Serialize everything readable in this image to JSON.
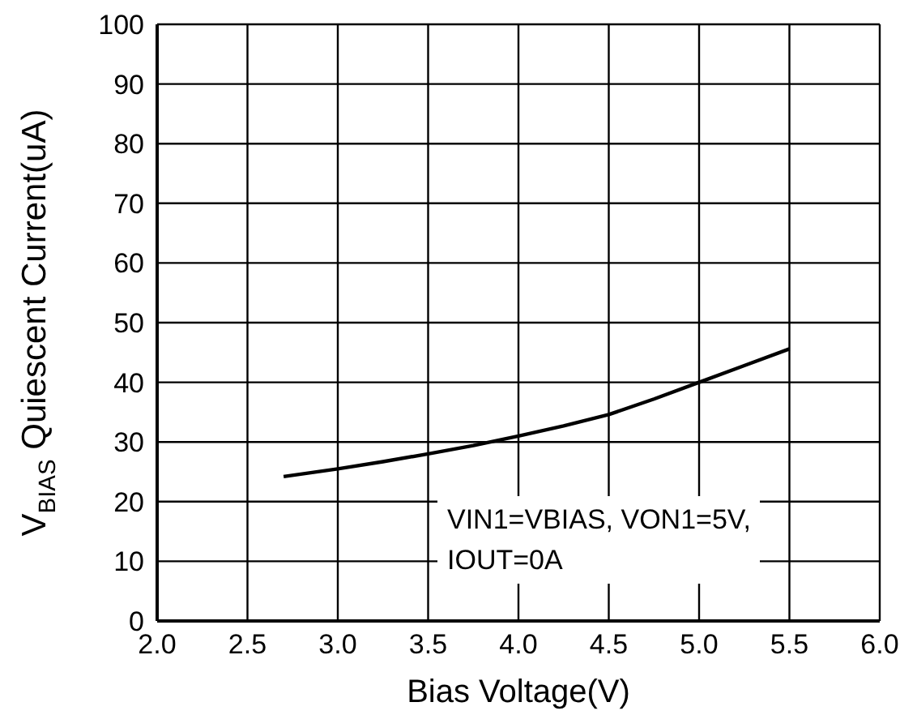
{
  "chart_data": {
    "type": "line",
    "xlabel": "Bias Voltage(V)",
    "ylabel": "V$_{BIAS}$ Quiescent Current(uA)",
    "x": [
      2.7,
      3.0,
      3.25,
      3.5,
      3.75,
      4.0,
      4.25,
      4.5,
      4.75,
      5.0,
      5.25,
      5.5
    ],
    "series": [
      {
        "color": "#000000",
        "values": [
          24.2,
          25.5,
          26.7,
          28.0,
          29.4,
          31.0,
          32.7,
          34.6,
          37.2,
          40.0,
          42.8,
          45.6
        ]
      }
    ],
    "xlim": [
      2.0,
      6.0
    ],
    "xticks": [
      {
        "value": 2.0,
        "label": "2.0"
      },
      {
        "value": 2.5,
        "label": "2.5"
      },
      {
        "value": 3.0,
        "label": "3.0"
      },
      {
        "value": 3.5,
        "label": "3.5"
      },
      {
        "value": 4.0,
        "label": "4.0"
      },
      {
        "value": 4.5,
        "label": "4.5"
      },
      {
        "value": 5.0,
        "label": "5.0"
      },
      {
        "value": 5.5,
        "label": "5.5"
      },
      {
        "value": 6.0,
        "label": "6.0"
      }
    ],
    "ylim": [
      0,
      100
    ],
    "yticks": [
      0,
      10,
      20,
      30,
      40,
      50,
      60,
      70,
      80,
      90,
      100
    ],
    "grid": true,
    "marker": "none",
    "line_style": "solid",
    "annotations": [
      "VIN1=VBIAS, VON1=5V,\nIOUT=0A"
    ]
  }
}
